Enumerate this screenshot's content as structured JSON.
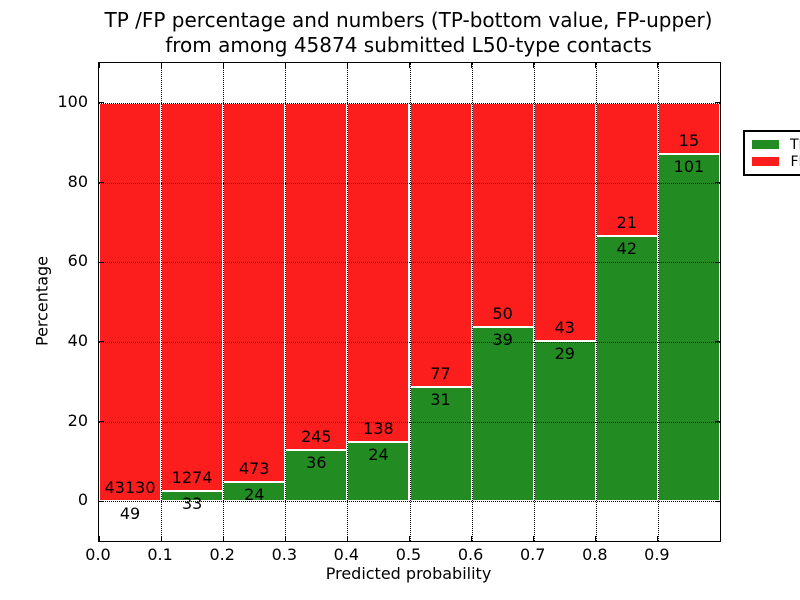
{
  "title": {
    "line1": "TP /FP percentage and numbers (TP-bottom value, FP-upper)",
    "line2": "from among 45874 submitted L50-type contacts"
  },
  "axes": {
    "xlabel": "Predicted probability",
    "ylabel": "Percentage",
    "xlim": [
      0.0,
      1.0
    ],
    "ylim": [
      -10,
      110
    ],
    "x_ticks": [
      {
        "value": 0.0,
        "label": "0.0"
      },
      {
        "value": 0.1,
        "label": "0.1"
      },
      {
        "value": 0.2,
        "label": "0.2"
      },
      {
        "value": 0.3,
        "label": "0.3"
      },
      {
        "value": 0.4,
        "label": "0.4"
      },
      {
        "value": 0.5,
        "label": "0.5"
      },
      {
        "value": 0.6,
        "label": "0.6"
      },
      {
        "value": 0.7,
        "label": "0.7"
      },
      {
        "value": 0.8,
        "label": "0.8"
      },
      {
        "value": 0.9,
        "label": "0.9"
      }
    ],
    "y_ticks": [
      {
        "value": 0,
        "label": "0"
      },
      {
        "value": 20,
        "label": "20"
      },
      {
        "value": 40,
        "label": "40"
      },
      {
        "value": 60,
        "label": "60"
      },
      {
        "value": 80,
        "label": "80"
      },
      {
        "value": 100,
        "label": "100"
      }
    ],
    "grid": "dotted both axes"
  },
  "legend": {
    "position": "upper right",
    "items": [
      {
        "label": "TP",
        "color": "#228b22"
      },
      {
        "label": "FP",
        "color": "#fc1d1d"
      }
    ]
  },
  "chart_data": {
    "type": "bar",
    "stacked": true,
    "normalized_to_percent": true,
    "title": "TP /FP percentage and numbers (TP-bottom value, FP-upper) from among 45874 submitted L50-type contacts",
    "xlabel": "Predicted probability",
    "ylabel": "Percentage",
    "x_bins": [
      0.0,
      0.1,
      0.2,
      0.3,
      0.4,
      0.5,
      0.6,
      0.7,
      0.8,
      0.9
    ],
    "bin_width": 0.1,
    "series": [
      {
        "name": "TP",
        "color": "#228b22",
        "counts": [
          49,
          33,
          24,
          36,
          24,
          31,
          39,
          29,
          42,
          101
        ]
      },
      {
        "name": "FP",
        "color": "#fc1d1d",
        "counts": [
          43130,
          1274,
          473,
          245,
          138,
          77,
          50,
          43,
          21,
          15
        ]
      }
    ],
    "tp_percent": [
      0.11,
      2.52,
      4.83,
      12.81,
      14.81,
      28.7,
      43.82,
      40.28,
      66.67,
      87.07
    ],
    "total_contacts": 45874,
    "bar_edge_color": "#ffffff",
    "xlim": [
      0.0,
      1.0
    ],
    "ylim": [
      -10,
      110
    ],
    "legend_position": "upper right"
  }
}
